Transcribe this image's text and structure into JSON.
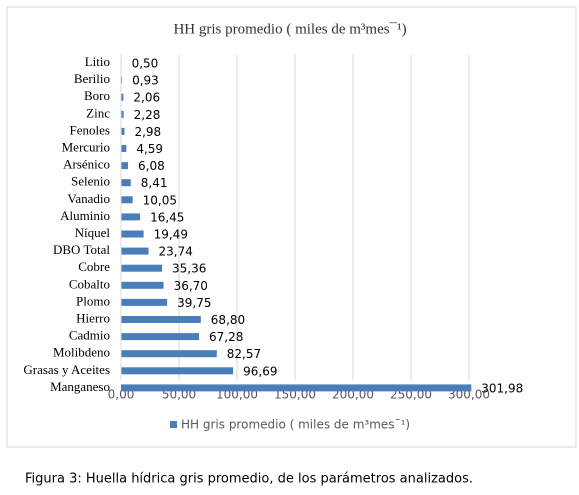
{
  "chart_data": {
    "type": "hbar",
    "title": "HH gris promedio ( miles de m³mes¯¹)",
    "categories": [
      "Litio",
      "Berilio",
      "Boro",
      "Zinc",
      "Fenoles",
      "Mercurio",
      "Arsénico",
      "Selenio",
      "Vanadio",
      "Aluminio",
      "Níquel",
      "DBO Total",
      "Cobre",
      "Cobalto",
      "Plomo",
      "Hierro",
      "Cadmio",
      "Molibdeno",
      "Grasas y Aceites",
      "Manganeso"
    ],
    "series": [
      {
        "name": "HH gris promedio ( miles de m³mes¯¹)",
        "color": "#4a7ebb",
        "values": [
          0.5,
          0.93,
          2.06,
          2.28,
          2.98,
          4.59,
          6.08,
          8.41,
          10.05,
          16.45,
          19.49,
          23.74,
          35.36,
          36.7,
          39.75,
          68.8,
          67.28,
          82.57,
          96.69,
          301.98
        ],
        "value_labels": [
          "0,50",
          "0,93",
          "2,06",
          "2,28",
          "2,98",
          "4,59",
          "6,08",
          "8,41",
          "10,05",
          "16,45",
          "19,49",
          "23,74",
          "35,36",
          "36,70",
          "39,75",
          "68,80",
          "67,28",
          "82,57",
          "96,69",
          "301,98"
        ]
      }
    ],
    "xlim": [
      0,
      300
    ],
    "xticks": [
      {
        "value": 0,
        "label": "0,00"
      },
      {
        "value": 50,
        "label": "50,00"
      },
      {
        "value": 100,
        "label": "100,00"
      },
      {
        "value": 150,
        "label": "150,00"
      },
      {
        "value": 200,
        "label": "200,00"
      },
      {
        "value": 250,
        "label": "250,00"
      },
      {
        "value": 300,
        "label": "300,00"
      }
    ],
    "grid": true,
    "legend": "bottom",
    "caption": "Figura 3:  Huella hídrica gris promedio, de los parámetros analizados."
  }
}
